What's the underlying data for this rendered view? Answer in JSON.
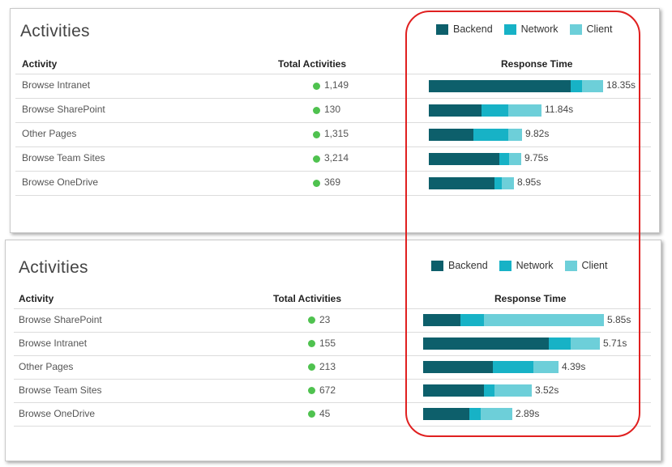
{
  "colors": {
    "backend": "#0d5f6b",
    "network": "#17b2c6",
    "client": "#6dcfd9",
    "dot": "#4fc24f",
    "highlight": "#e02020"
  },
  "legend": {
    "backend": "Backend",
    "network": "Network",
    "client": "Client"
  },
  "headers": {
    "activity": "Activity",
    "total": "Total Activities",
    "response": "Response Time"
  },
  "panels": [
    {
      "title": "Activities",
      "rows": [
        {
          "activity": "Browse Intranet",
          "total": "1,149",
          "time": "18.35s",
          "seconds": 18.35,
          "backend": 0.815,
          "network": 0.063,
          "client": 0.122
        },
        {
          "activity": "Browse SharePoint",
          "total": "130",
          "time": "11.84s",
          "seconds": 11.84,
          "backend": 0.47,
          "network": 0.237,
          "client": 0.293
        },
        {
          "activity": "Other Pages",
          "total": "1,315",
          "time": "9.82s",
          "seconds": 9.82,
          "backend": 0.48,
          "network": 0.37,
          "client": 0.15
        },
        {
          "activity": "Browse Team Sites",
          "total": "3,214",
          "time": "9.75s",
          "seconds": 9.75,
          "backend": 0.765,
          "network": 0.102,
          "client": 0.133
        },
        {
          "activity": "Browse OneDrive",
          "total": "369",
          "time": "8.95s",
          "seconds": 8.95,
          "backend": 0.776,
          "network": 0.082,
          "client": 0.142
        }
      ]
    },
    {
      "title": "Activities",
      "rows": [
        {
          "activity": "Browse SharePoint",
          "total": "23",
          "time": "5.85s",
          "seconds": 5.85,
          "backend": 0.208,
          "network": 0.127,
          "client": 0.665
        },
        {
          "activity": "Browse Intranet",
          "total": "155",
          "time": "5.71s",
          "seconds": 5.71,
          "backend": 0.71,
          "network": 0.126,
          "client": 0.164
        },
        {
          "activity": "Other Pages",
          "total": "213",
          "time": "4.39s",
          "seconds": 4.39,
          "backend": 0.515,
          "network": 0.3,
          "client": 0.185
        },
        {
          "activity": "Browse Team Sites",
          "total": "672",
          "time": "3.52s",
          "seconds": 3.52,
          "backend": 0.56,
          "network": 0.097,
          "client": 0.343
        },
        {
          "activity": "Browse OneDrive",
          "total": "45",
          "time": "2.89s",
          "seconds": 2.89,
          "backend": 0.517,
          "network": 0.133,
          "client": 0.35
        }
      ]
    }
  ]
}
